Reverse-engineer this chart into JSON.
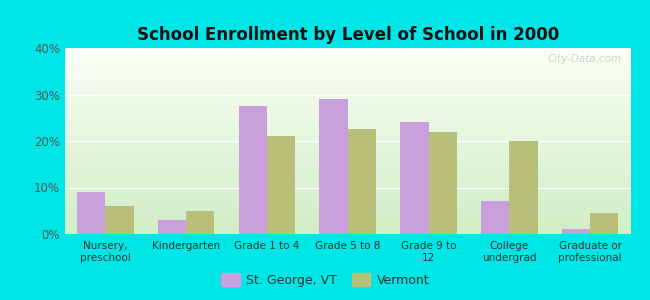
{
  "title": "School Enrollment by Level of School in 2000",
  "categories": [
    "Nursery,\npreschool",
    "Kindergarten",
    "Grade 1 to 4",
    "Grade 5 to 8",
    "Grade 9 to\n12",
    "College\nundergrad",
    "Graduate or\nprofessional"
  ],
  "st_george": [
    9.0,
    3.0,
    27.5,
    29.0,
    24.0,
    7.0,
    1.0
  ],
  "vermont": [
    6.0,
    5.0,
    21.0,
    22.5,
    22.0,
    20.0,
    4.5
  ],
  "bar_color_sg": "#c9a0dc",
  "bar_color_vt": "#b8bf78",
  "background_color": "#00e5e5",
  "ylabel_ticks": [
    "0%",
    "10%",
    "20%",
    "30%",
    "40%"
  ],
  "ytick_values": [
    0,
    10,
    20,
    30,
    40
  ],
  "ylim": [
    0,
    40
  ],
  "legend_sg": "St. George, VT",
  "legend_vt": "Vermont",
  "watermark": "City-Data.com"
}
